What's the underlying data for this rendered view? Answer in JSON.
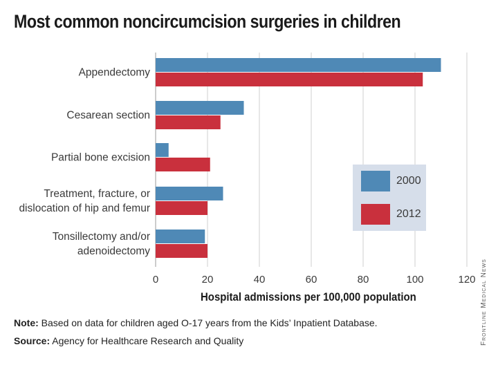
{
  "title": "Most common noncircumcision surgeries in children",
  "note_label": "Note:",
  "note_text": " Based on data for children aged O-17 years from the Kids’ Inpatient Database.",
  "source_label": "Source:",
  "source_text": " Agency for Healthcare Research and Quality",
  "credit": "Frontline Medical News",
  "colors": {
    "2000": "#4f89b6",
    "2012": "#c9303d",
    "grid": "#cfcfcf",
    "legend_bg": "#d6deea"
  },
  "chart_data": {
    "type": "bar",
    "orientation": "horizontal",
    "xlabel": "Hospital admissions per 100,000 population",
    "xlim": [
      0,
      120
    ],
    "xticks": [
      0,
      20,
      40,
      60,
      80,
      100,
      120
    ],
    "grid": true,
    "legend_placement": "right-middle",
    "categories": [
      [
        "Appendectomy"
      ],
      [
        "Cesarean section"
      ],
      [
        "Partial bone excision"
      ],
      [
        "Treatment, fracture, or",
        "dislocation of hip and femur"
      ],
      [
        "Tonsillectomy and/or",
        "adenoidectomy"
      ]
    ],
    "series": [
      {
        "name": "2000",
        "values": [
          110,
          34,
          5,
          26,
          19
        ]
      },
      {
        "name": "2012",
        "values": [
          103,
          25,
          21,
          20,
          20
        ]
      }
    ]
  }
}
